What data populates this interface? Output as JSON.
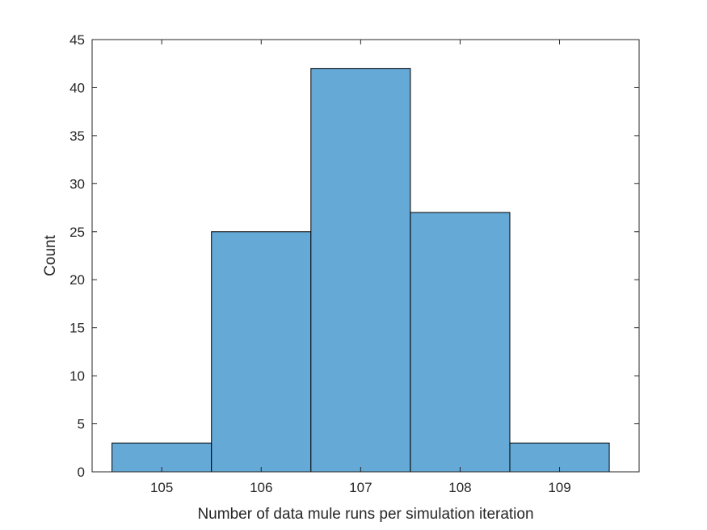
{
  "chart_data": {
    "type": "bar",
    "categories": [
      "105",
      "106",
      "107",
      "108",
      "109"
    ],
    "values": [
      3,
      25,
      42,
      27,
      3
    ],
    "xlabel": "Number of data mule runs per simulation iteration",
    "ylabel": "Count",
    "xlim": [
      104.3,
      109.8
    ],
    "ylim": [
      0,
      45
    ],
    "yticks": [
      "0",
      "5",
      "10",
      "15",
      "20",
      "25",
      "30",
      "35",
      "40",
      "45"
    ],
    "xticks": [
      "105",
      "106",
      "107",
      "108",
      "109"
    ],
    "bar_color": "#65a9d7",
    "edge_color": "#000000",
    "grid": false,
    "legend": "none"
  }
}
